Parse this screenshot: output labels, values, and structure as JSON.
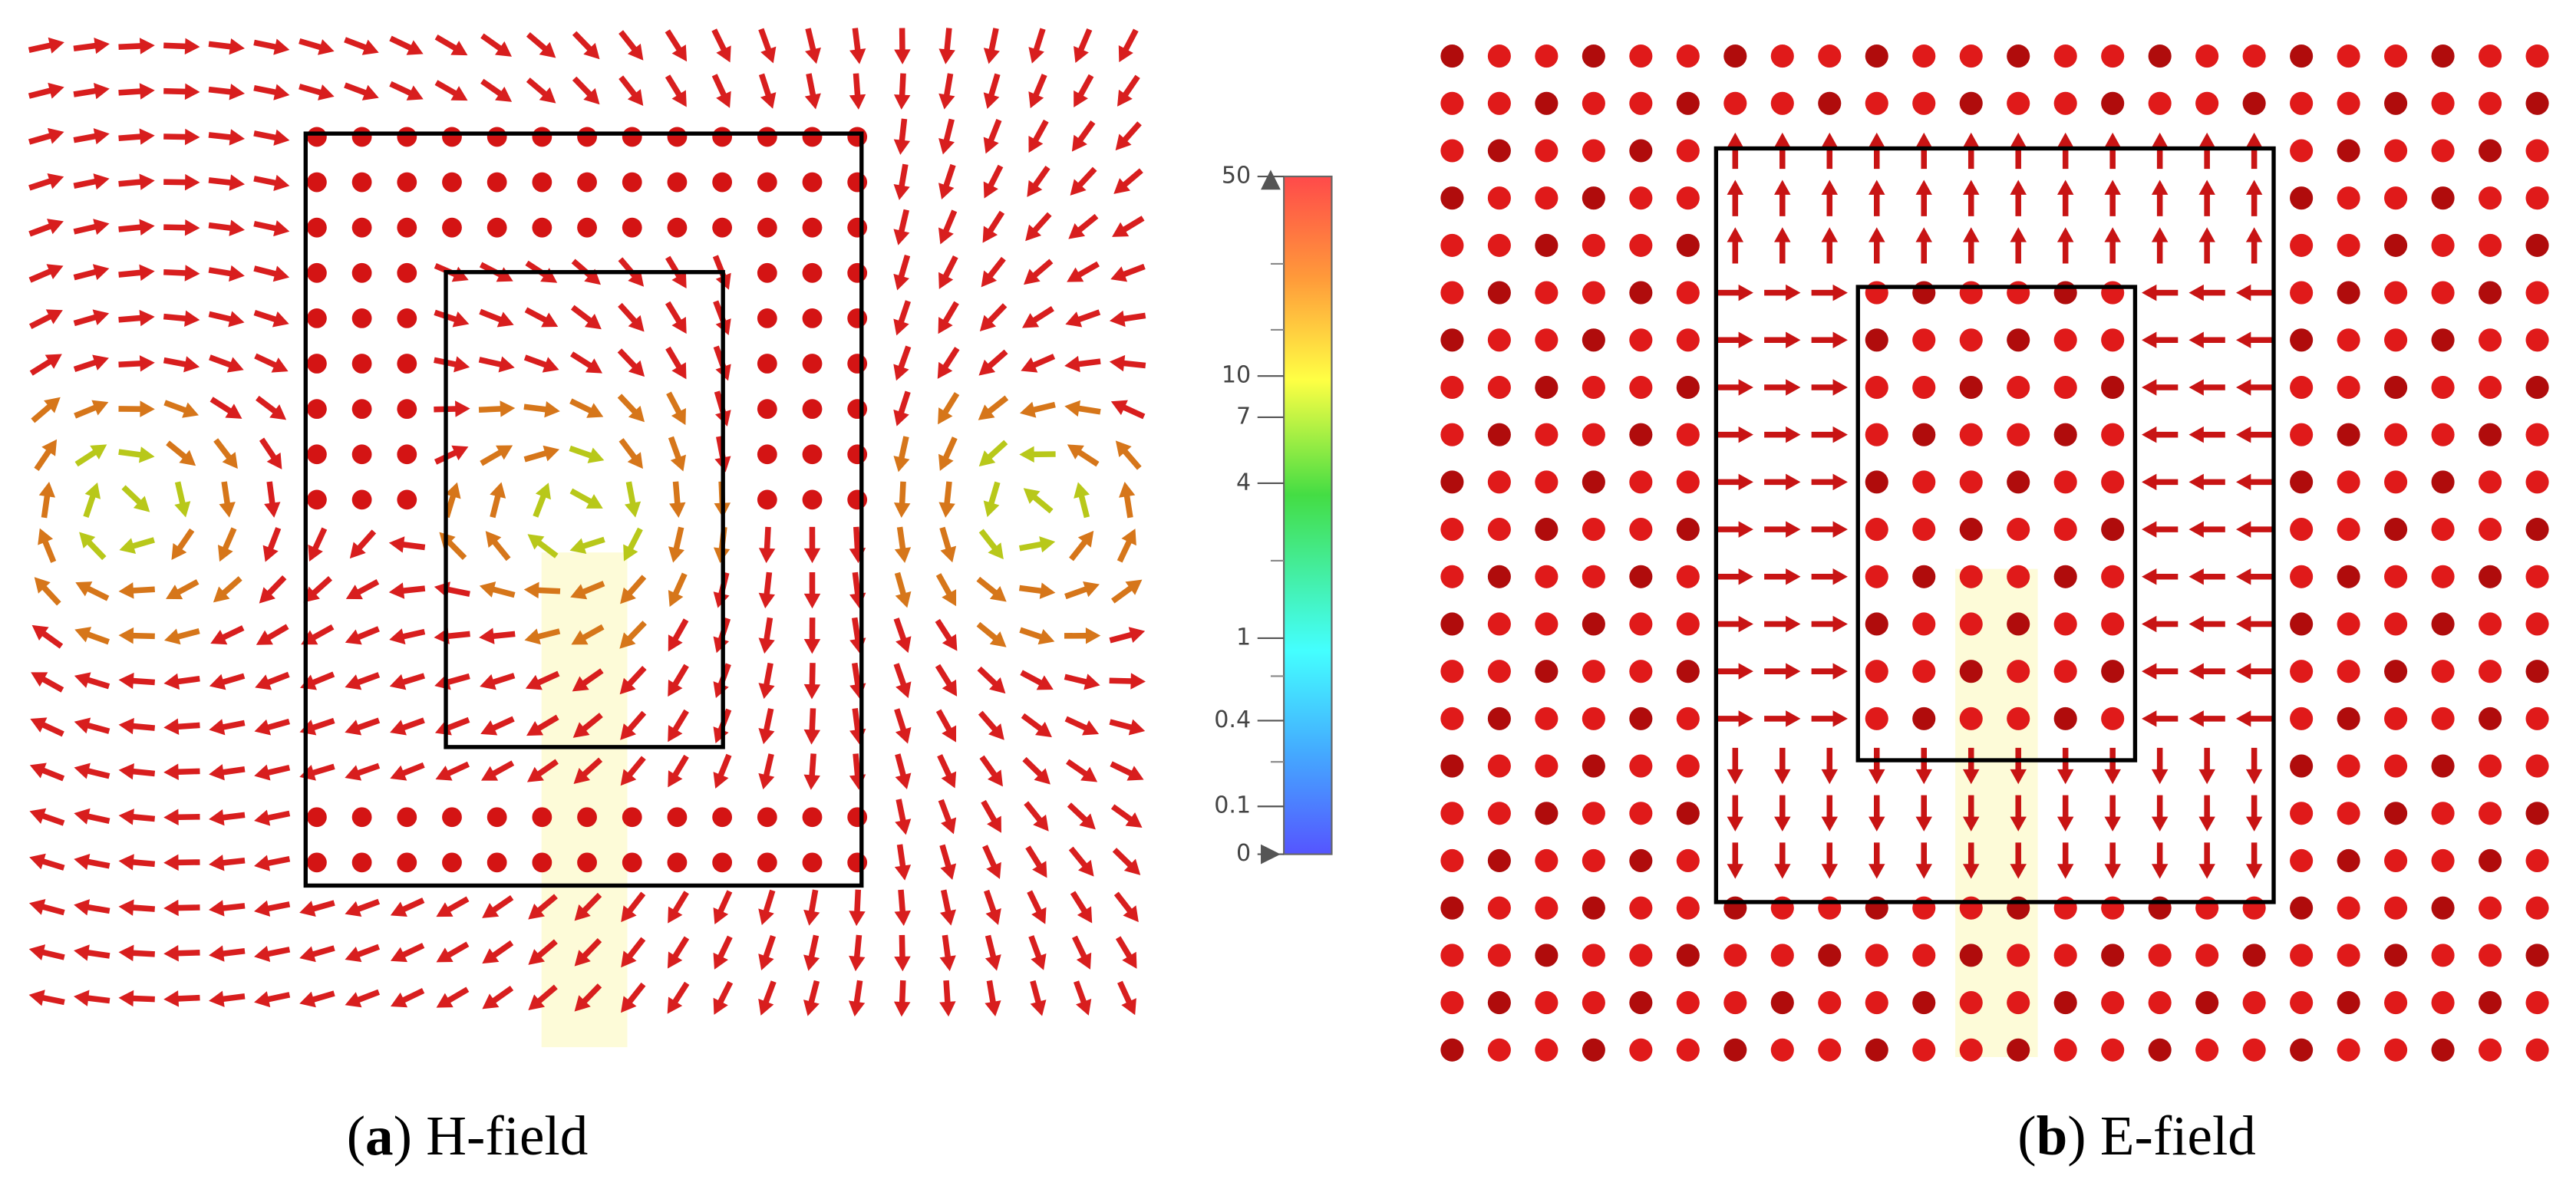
{
  "figure": {
    "panels": [
      {
        "caption": [
          "(",
          "a",
          ") H-field"
        ]
      },
      {
        "caption": [
          "(",
          "b",
          ") E-field"
        ]
      }
    ],
    "colorbar": {
      "ticks": [
        50,
        10,
        7,
        4,
        1,
        0.4,
        0.1,
        0
      ]
    }
  }
}
